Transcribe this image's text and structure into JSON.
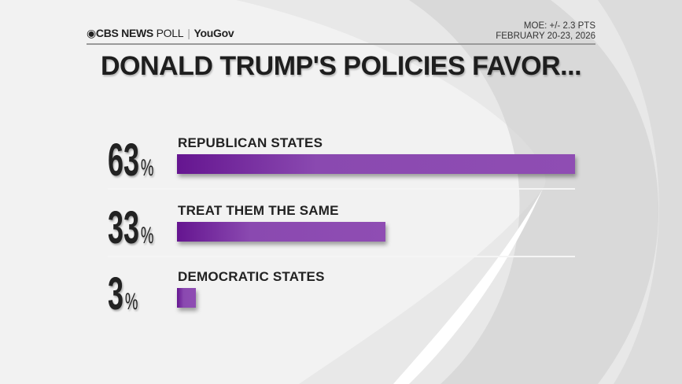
{
  "header": {
    "brand": "CBS NEWS",
    "brand_suffix": "POLL",
    "partner": "YouGov",
    "moe": "MOE: +/- 2.3 PTS",
    "dates": "FEBRUARY 20-23, 2026"
  },
  "chart_data": {
    "type": "bar",
    "orientation": "horizontal",
    "title": "DONALD TRUMP'S POLICIES FAVOR...",
    "categories": [
      "REPUBLICAN STATES",
      "TREAT THEM THE SAME",
      "DEMOCRATIC STATES"
    ],
    "values": [
      63,
      33,
      3
    ],
    "value_labels": [
      "63",
      "33",
      "3"
    ],
    "unit": "%",
    "bar_color": "#8a49b0",
    "xlim": [
      0,
      63
    ],
    "grid": false
  }
}
